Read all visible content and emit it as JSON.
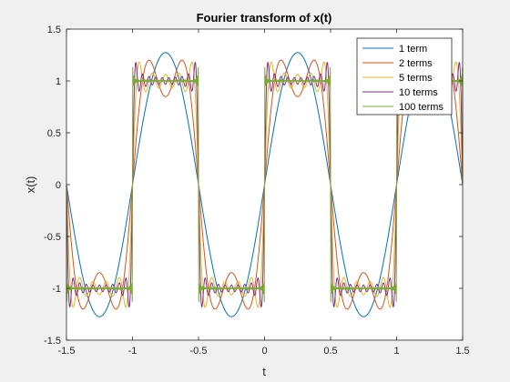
{
  "chart_data": {
    "type": "line",
    "title": "Fourier transform of x(t)",
    "xlabel": "t",
    "ylabel": "x(t)",
    "xlim": [
      -1.5,
      1.5
    ],
    "ylim": [
      -1.5,
      1.5
    ],
    "xticks": [
      -1.5,
      -1,
      -0.5,
      0,
      0.5,
      1,
      1.5
    ],
    "xtick_labels": [
      "-1.5",
      "-1",
      "-0.5",
      "0",
      "0.5",
      "1",
      "1.5"
    ],
    "yticks": [
      -1.5,
      -1,
      -0.5,
      0,
      0.5,
      1,
      1.5
    ],
    "ytick_labels": [
      "-1.5",
      "-1",
      "-0.5",
      "0",
      "0.5",
      "1",
      "1.5"
    ],
    "grid": false,
    "legend_position": "top-right",
    "function": "square wave, period 1, amplitude 1, Fourier series sum over odd harmonics n: (4/pi) * sin(2*pi*n*t)/n",
    "series": [
      {
        "name": "1 term",
        "terms": 1,
        "color": "#0072BD"
      },
      {
        "name": "2 terms",
        "terms": 2,
        "color": "#D95319"
      },
      {
        "name": "5 terms",
        "terms": 5,
        "color": "#EDB120"
      },
      {
        "name": "10 terms",
        "terms": 10,
        "color": "#7E2F8E"
      },
      {
        "name": "100 terms",
        "terms": 100,
        "color": "#77AC30"
      }
    ]
  }
}
